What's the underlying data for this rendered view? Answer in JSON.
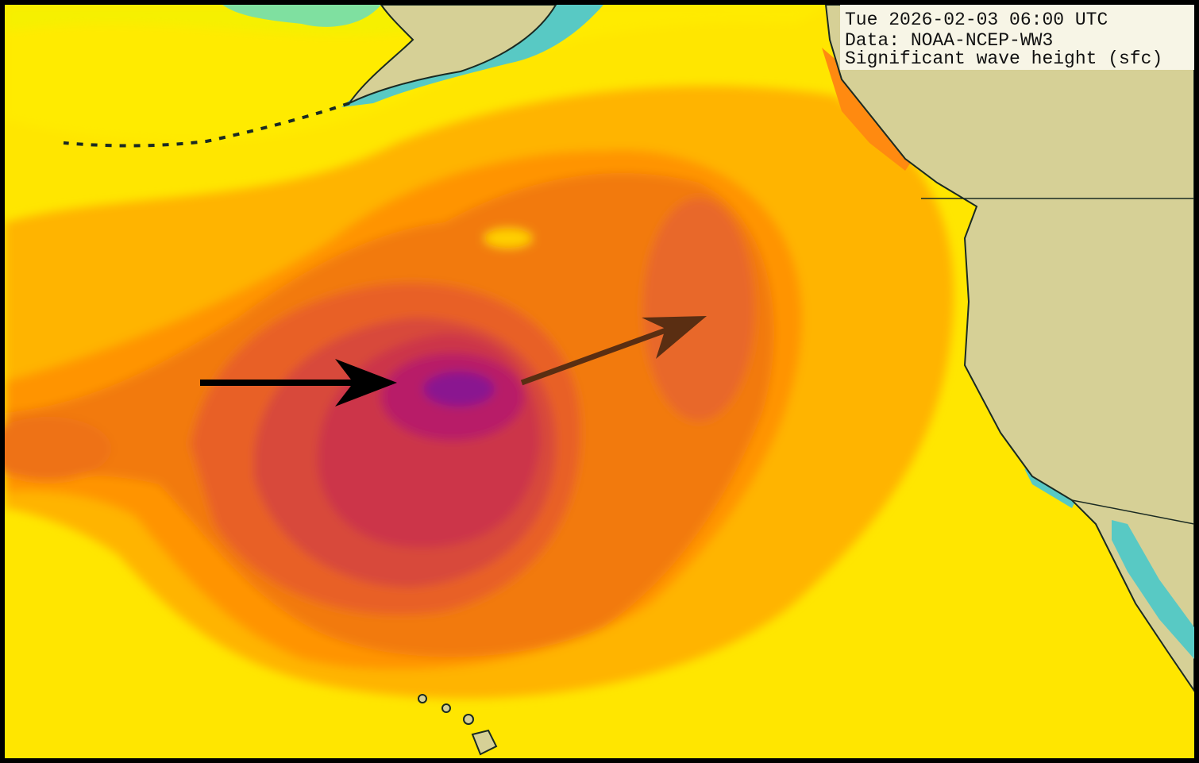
{
  "header": {
    "datetime": "Tue 2026-02-03 06:00 UTC",
    "source": "Data: NOAA-NCEP-WW3",
    "variable": "Significant wave height (sfc)"
  }
}
